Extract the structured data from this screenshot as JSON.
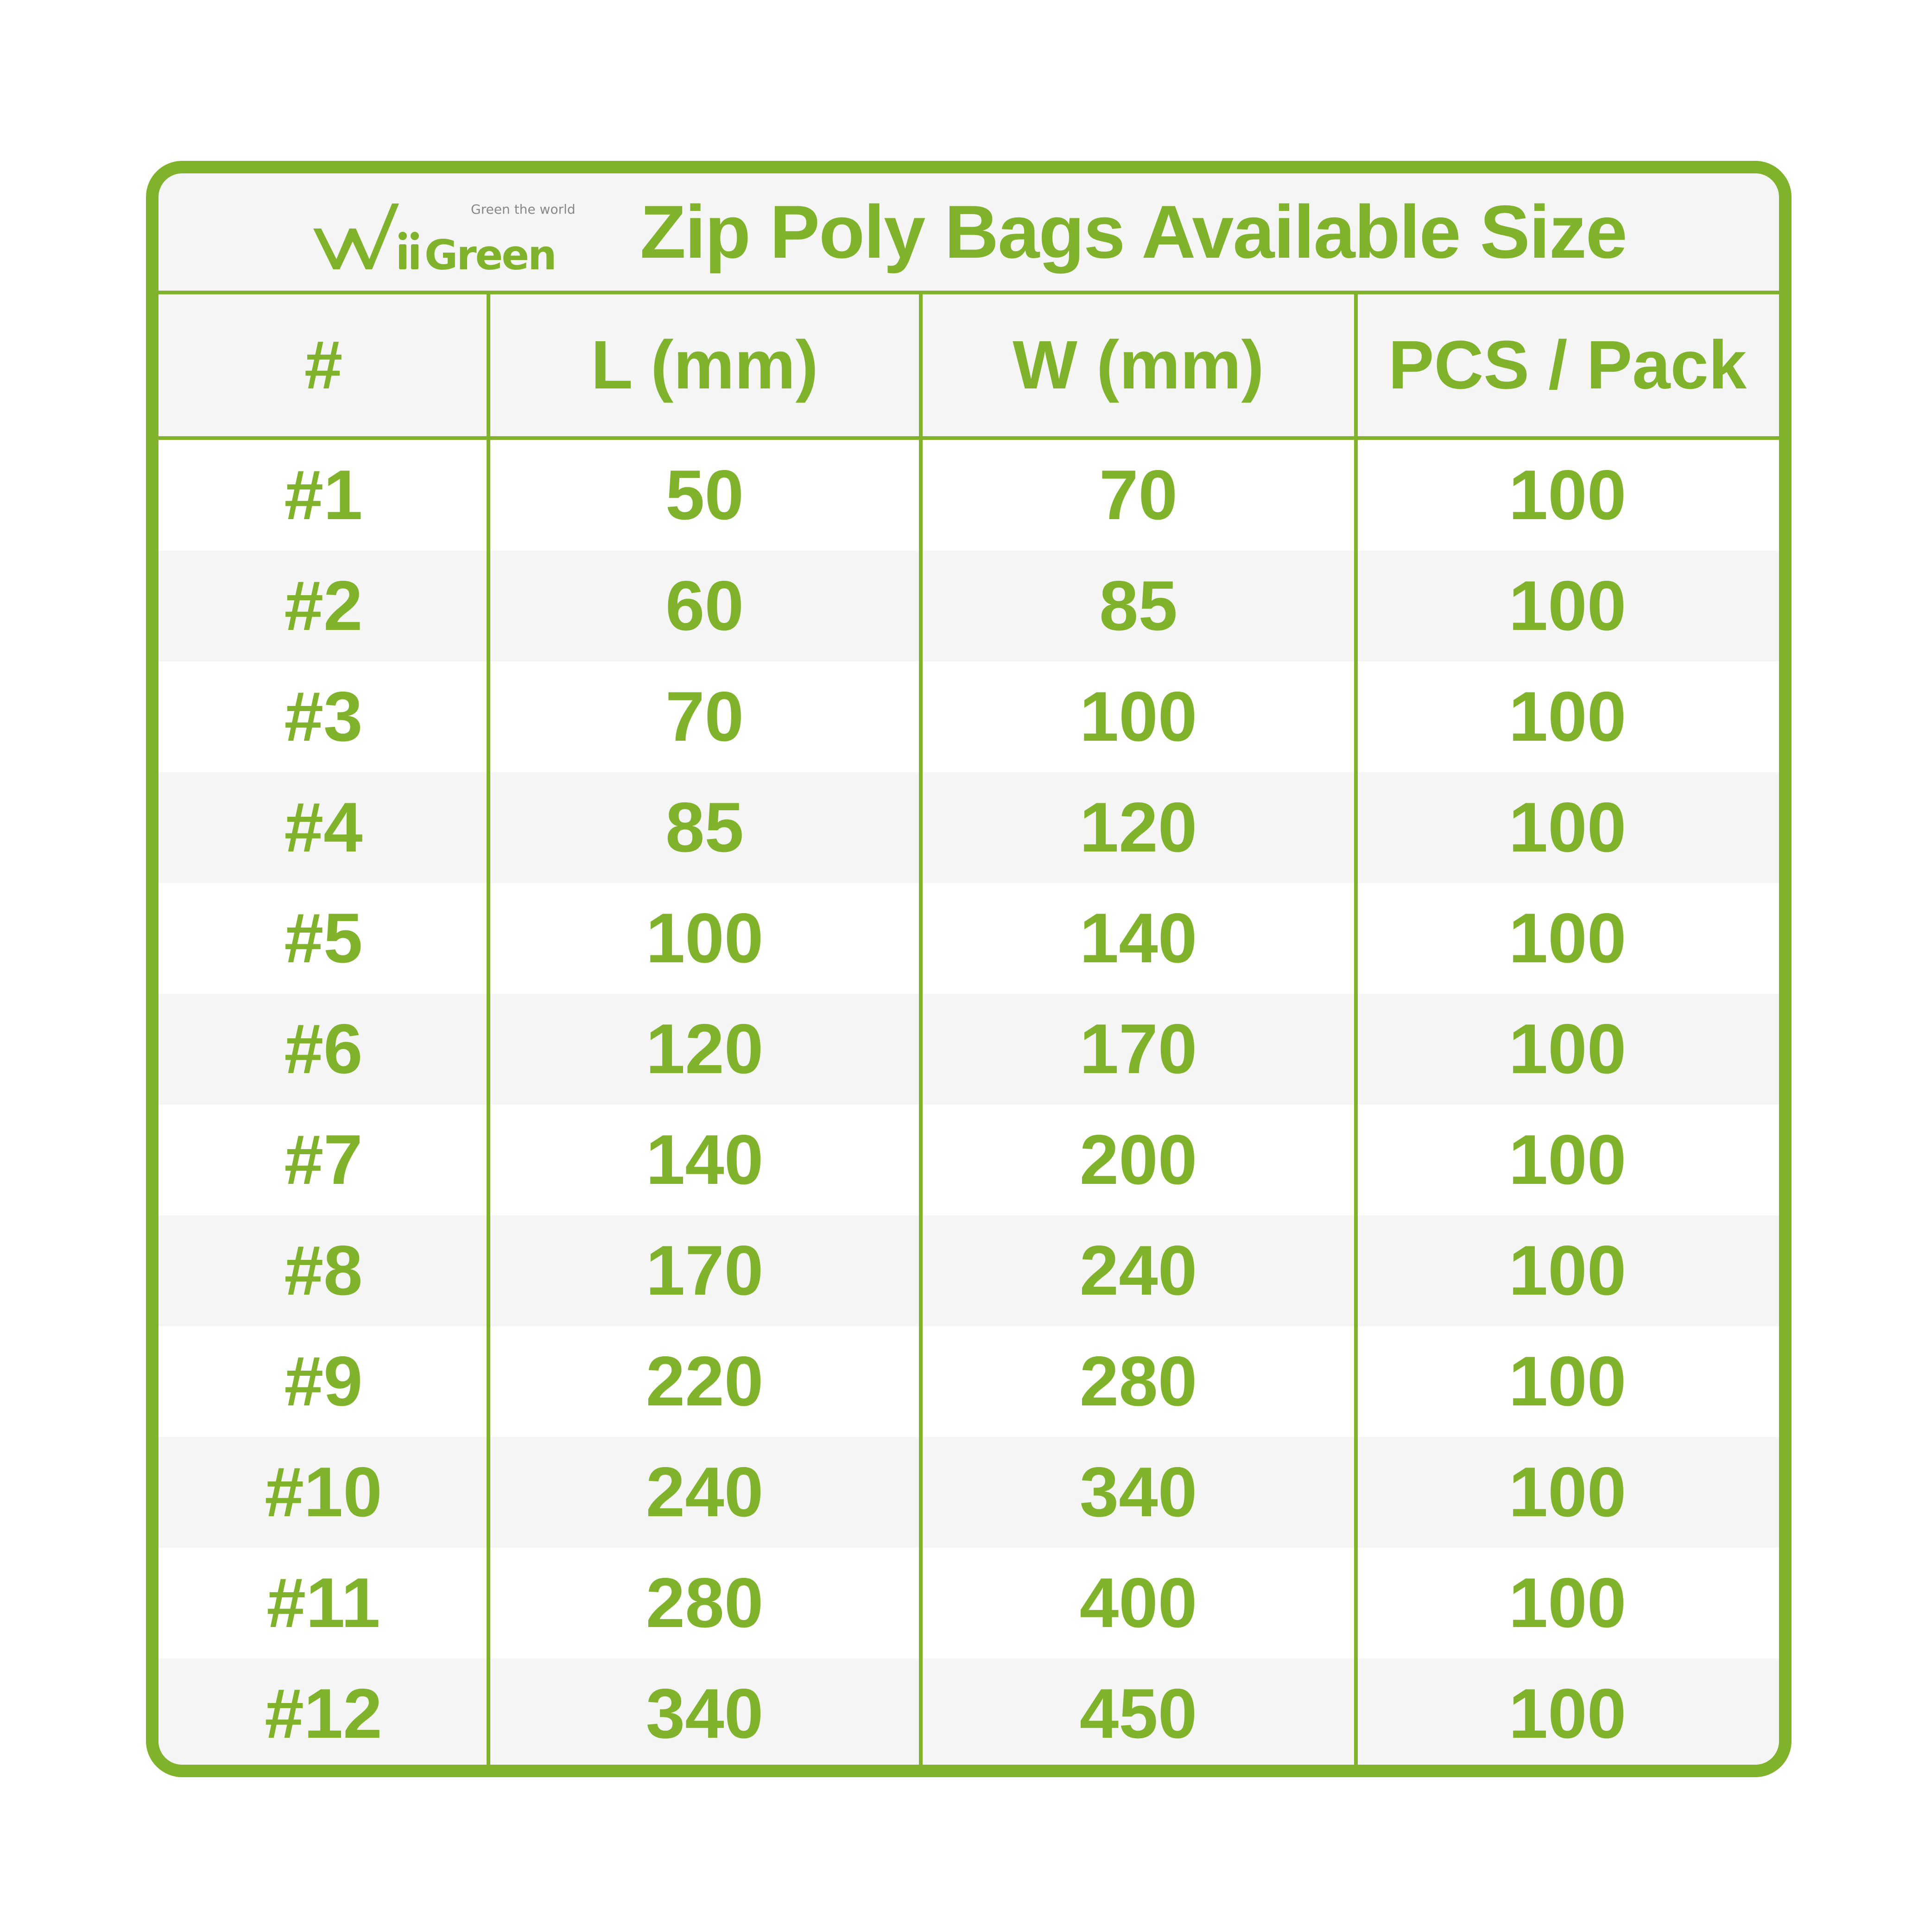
{
  "brand": {
    "logo_text": "WiiGreen",
    "tagline": "Green the world",
    "color": "#80b32b",
    "tagline_color": "#888888"
  },
  "title": "Zip Poly Bags Available Size",
  "table": {
    "columns": [
      "#",
      "L (mm)",
      "W (mm)",
      "PCS / Pack"
    ],
    "rows": [
      [
        "#1",
        "50",
        "70",
        "100"
      ],
      [
        "#2",
        "60",
        "85",
        "100"
      ],
      [
        "#3",
        "70",
        "100",
        "100"
      ],
      [
        "#4",
        "85",
        "120",
        "100"
      ],
      [
        "#5",
        "100",
        "140",
        "100"
      ],
      [
        "#6",
        "120",
        "170",
        "100"
      ],
      [
        "#7",
        "140",
        "200",
        "100"
      ],
      [
        "#8",
        "170",
        "240",
        "100"
      ],
      [
        "#9",
        "220",
        "280",
        "100"
      ],
      [
        "#10",
        "240",
        "340",
        "100"
      ],
      [
        "#11",
        "280",
        "400",
        "100"
      ],
      [
        "#12",
        "340",
        "450",
        "100"
      ]
    ],
    "row_colors": [
      "#ffffff",
      "#f5f5f5"
    ]
  }
}
